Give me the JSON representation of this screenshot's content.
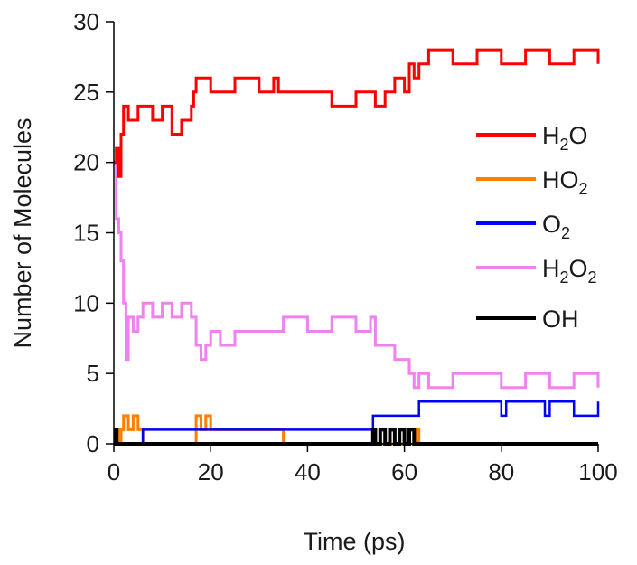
{
  "chart_data": {
    "type": "line",
    "xlabel": "Time (ps)",
    "ylabel": "Number of Molecules",
    "xlim": [
      0,
      100
    ],
    "ylim": [
      0,
      30
    ],
    "x_ticks": [
      0,
      20,
      40,
      60,
      80,
      100
    ],
    "y_ticks": [
      0,
      5,
      10,
      15,
      20,
      25,
      30
    ],
    "grid": false,
    "legend_position": "right",
    "series": [
      {
        "name": "H2O",
        "base": "H",
        "sub": "2",
        "tail": "O",
        "color": "#ff0000",
        "x": [
          0,
          0.5,
          1,
          1.5,
          2,
          3,
          5,
          8,
          10,
          12,
          14,
          16,
          16.5,
          17,
          20,
          25,
          30,
          33,
          34,
          35,
          40,
          45,
          50,
          53,
          54,
          56,
          58,
          60,
          61,
          62,
          63,
          65,
          70,
          75,
          80,
          85,
          90,
          95,
          100
        ],
        "values": [
          20,
          21,
          19,
          22,
          24,
          23,
          24,
          23,
          24,
          22,
          23,
          24,
          25,
          26,
          25,
          26,
          25,
          26,
          25,
          25,
          25,
          24,
          25,
          25,
          24,
          25,
          26,
          25,
          27,
          26,
          27,
          28,
          27,
          28,
          27,
          28,
          27,
          28,
          27
        ]
      },
      {
        "name": "HO2",
        "base": "HO",
        "sub": "2",
        "tail": "",
        "color": "#ff8000",
        "x": [
          0,
          0.5,
          1,
          1.5,
          2,
          3,
          4,
          5,
          6,
          17,
          18,
          19,
          20,
          21,
          25,
          30,
          34,
          35,
          62,
          62.5,
          63,
          100
        ],
        "values": [
          0,
          1,
          0,
          1,
          2,
          1,
          2,
          1,
          0,
          2,
          1,
          2,
          1,
          1,
          1,
          1,
          1,
          0,
          0,
          1,
          0,
          0
        ]
      },
      {
        "name": "O2",
        "base": "O",
        "sub": "2",
        "tail": "",
        "color": "#0000ff",
        "x": [
          0,
          6,
          53.5,
          63,
          80,
          81,
          89,
          90,
          94,
          95,
          100
        ],
        "values": [
          0,
          1,
          2,
          3,
          2,
          3,
          2,
          3,
          3,
          2,
          3
        ]
      },
      {
        "name": "H2O2",
        "base": "H",
        "sub": "2",
        "tail": "O",
        "sub2": "2",
        "color": "#ee82ee",
        "x": [
          0,
          0.5,
          1,
          1.5,
          2,
          2.5,
          3,
          4,
          5,
          6,
          8,
          10,
          12,
          14,
          16,
          17,
          18,
          19,
          20,
          22,
          25,
          30,
          34,
          35,
          40,
          45,
          50,
          53,
          54,
          56,
          58,
          60,
          61,
          62,
          63,
          65,
          70,
          75,
          80,
          85,
          90,
          95,
          100
        ],
        "values": [
          20,
          16,
          15,
          13,
          10,
          6,
          9,
          8,
          9,
          10,
          9,
          10,
          9,
          10,
          9,
          7,
          6,
          7,
          8,
          7,
          8,
          8,
          8,
          9,
          8,
          9,
          8,
          9,
          7,
          7,
          6,
          6,
          5,
          4,
          5,
          4,
          5,
          5,
          4,
          5,
          4,
          5,
          4
        ]
      },
      {
        "name": "OH",
        "base": "OH",
        "sub": "",
        "tail": "",
        "color": "#000000",
        "x": [
          0,
          0.3,
          0.6,
          1,
          53,
          53.5,
          54,
          55,
          56,
          57,
          58,
          59,
          60,
          61,
          62,
          63,
          100
        ],
        "values": [
          0,
          1,
          0,
          0,
          0,
          1,
          0,
          1,
          0,
          1,
          0,
          1,
          0,
          1,
          0,
          0,
          0
        ]
      }
    ]
  }
}
